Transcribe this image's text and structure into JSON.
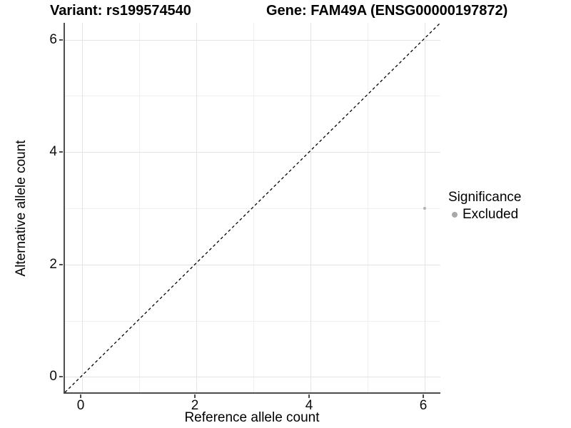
{
  "titles": {
    "left": "Variant: rs199574540",
    "right": "Gene: FAM49A (ENSG00000197872)"
  },
  "chart_data": {
    "type": "scatter",
    "title": "Variant: rs199574540    Gene: FAM49A (ENSG00000197872)",
    "xlabel": "Reference allele count",
    "ylabel": "Alternative allele count",
    "xlim": [
      -0.3,
      6.3
    ],
    "ylim": [
      -0.3,
      6.3
    ],
    "xticks": [
      0,
      2,
      4,
      6
    ],
    "yticks": [
      0,
      2,
      4,
      6
    ],
    "grid": {
      "major_x": [
        0,
        2,
        4,
        6
      ],
      "major_y": [
        0,
        2,
        4,
        6
      ],
      "minor_x": [
        1,
        3,
        5
      ],
      "minor_y": [
        1,
        3,
        5
      ],
      "on": true
    },
    "reference_line": {
      "type": "identity",
      "slope": 1,
      "intercept": 0,
      "style": "dashed",
      "color": "#000000"
    },
    "series": [
      {
        "name": "Excluded",
        "color": "#b2b2b2",
        "points": [
          {
            "x": 6,
            "y": 3
          }
        ]
      }
    ],
    "legend": {
      "title": "Significance",
      "position": "right",
      "entries": [
        {
          "label": "Excluded",
          "color": "#a8a8a8"
        }
      ]
    }
  },
  "colors": {
    "background": "#ffffff",
    "point": "#b2b2b2",
    "legend_dot": "#a8a8a8",
    "grid_major": "#e3e3e3",
    "grid_minor": "#f0f0f0",
    "axis_line": "#4d4d4d",
    "text": "#000000"
  }
}
